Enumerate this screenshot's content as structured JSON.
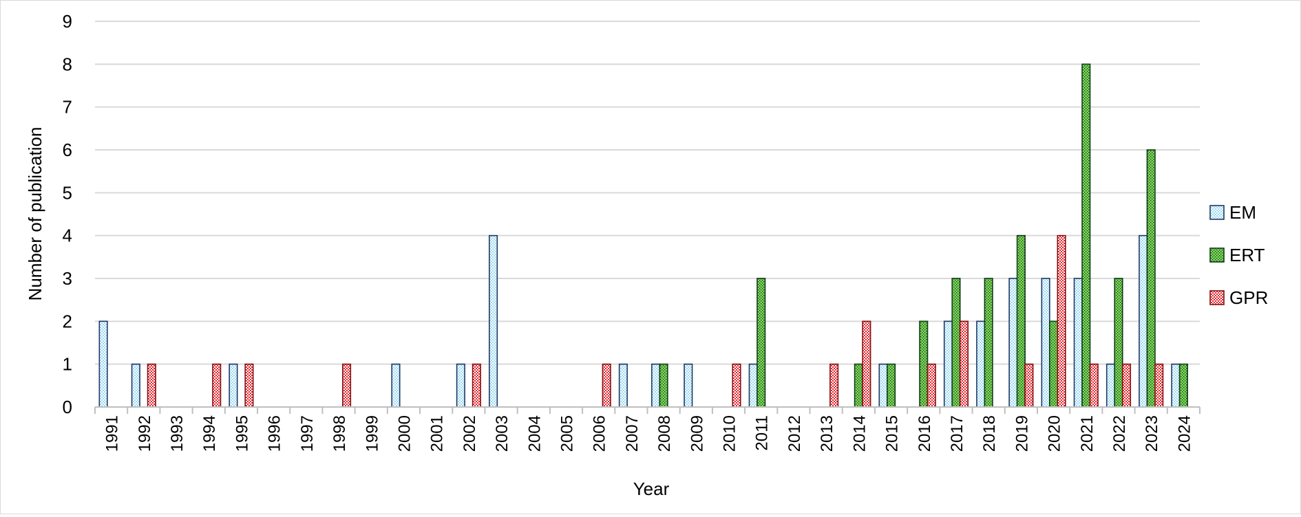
{
  "chart_data": {
    "type": "bar",
    "title": "",
    "xlabel": "Year",
    "ylabel": "Number of publication",
    "ylim": [
      0,
      9
    ],
    "yticks": [
      "0",
      "1",
      "2",
      "3",
      "4",
      "5",
      "6",
      "7",
      "8",
      "9"
    ],
    "grid": "horizontal",
    "legend_position": "right",
    "categories": [
      "1991",
      "1992",
      "1993",
      "1994",
      "1995",
      "1996",
      "1997",
      "1998",
      "1999",
      "2000",
      "2001",
      "2002",
      "2003",
      "2004",
      "2005",
      "2006",
      "2007",
      "2008",
      "2009",
      "2010",
      "2011",
      "2012",
      "2013",
      "2014",
      "2015",
      "2016",
      "2017",
      "2018",
      "2019",
      "2020",
      "2021",
      "2022",
      "2023",
      "2024"
    ],
    "series": [
      {
        "name": "EM",
        "pattern": "checker",
        "color": "#9dd9f3",
        "accent": "#ffffff",
        "border": "#1f3864",
        "values": [
          2,
          1,
          0,
          0,
          1,
          0,
          0,
          0,
          0,
          1,
          0,
          1,
          4,
          0,
          0,
          0,
          1,
          1,
          1,
          0,
          1,
          0,
          0,
          0,
          1,
          0,
          2,
          2,
          3,
          3,
          3,
          1,
          4,
          1
        ]
      },
      {
        "name": "ERT",
        "pattern": "dots",
        "color": "#7ed957",
        "accent": "#0e3b18",
        "border": "#0e3b18",
        "values": [
          0,
          0,
          0,
          0,
          0,
          0,
          0,
          0,
          0,
          0,
          0,
          0,
          0,
          0,
          0,
          0,
          0,
          1,
          0,
          0,
          3,
          0,
          0,
          1,
          1,
          2,
          3,
          3,
          4,
          2,
          8,
          3,
          6,
          1
        ]
      },
      {
        "name": "GPR",
        "pattern": "checker",
        "color": "#ffffff",
        "accent": "#e8242c",
        "border": "#7f1014",
        "values": [
          0,
          1,
          0,
          1,
          1,
          0,
          0,
          1,
          0,
          0,
          0,
          1,
          0,
          0,
          0,
          1,
          0,
          0,
          0,
          1,
          0,
          0,
          1,
          2,
          0,
          1,
          2,
          0,
          1,
          4,
          1,
          1,
          1,
          0
        ]
      }
    ]
  }
}
